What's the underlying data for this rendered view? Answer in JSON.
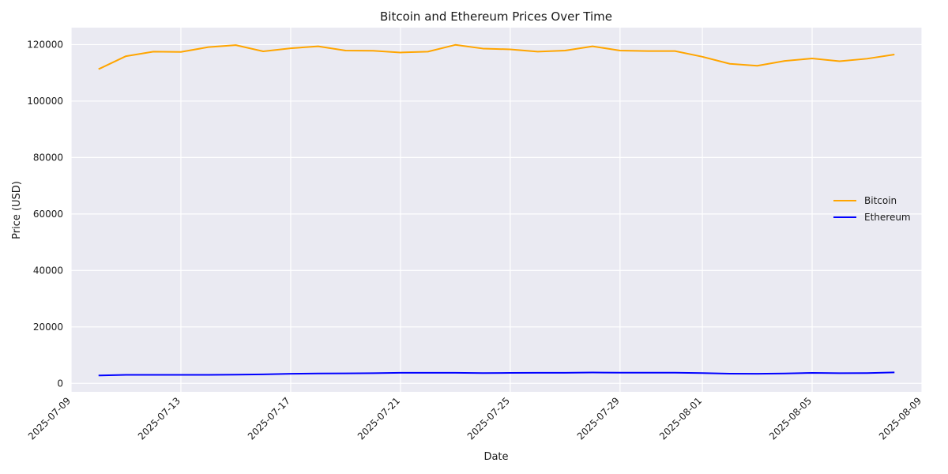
{
  "chart_data": {
    "type": "line",
    "title": "Bitcoin and Ethereum Prices Over Time",
    "xlabel": "Date",
    "ylabel": "Price (USD)",
    "x": [
      "2025-07-10",
      "2025-07-11",
      "2025-07-12",
      "2025-07-13",
      "2025-07-14",
      "2025-07-15",
      "2025-07-16",
      "2025-07-17",
      "2025-07-18",
      "2025-07-19",
      "2025-07-20",
      "2025-07-21",
      "2025-07-22",
      "2025-07-23",
      "2025-07-24",
      "2025-07-25",
      "2025-07-26",
      "2025-07-27",
      "2025-07-28",
      "2025-07-29",
      "2025-07-30",
      "2025-07-31",
      "2025-08-01",
      "2025-08-02",
      "2025-08-03",
      "2025-08-04",
      "2025-08-05",
      "2025-08-06",
      "2025-08-07",
      "2025-08-08"
    ],
    "series": [
      {
        "name": "Bitcoin",
        "color": "#FFA500",
        "values": [
          111300,
          115900,
          117500,
          117400,
          119100,
          119800,
          117600,
          118700,
          119400,
          117900,
          117800,
          117200,
          117500,
          119900,
          118600,
          118300,
          117500,
          117900,
          119400,
          117900,
          117700,
          117700,
          115700,
          113200,
          112500,
          114200,
          115100,
          114100,
          115000,
          116500
        ]
      },
      {
        "name": "Ethereum",
        "color": "#0000FF",
        "values": [
          2800,
          3000,
          3000,
          3000,
          3000,
          3100,
          3200,
          3400,
          3500,
          3550,
          3600,
          3750,
          3750,
          3750,
          3650,
          3700,
          3750,
          3750,
          3850,
          3800,
          3800,
          3800,
          3650,
          3450,
          3400,
          3500,
          3700,
          3600,
          3650,
          3900
        ]
      }
    ],
    "xticks": [
      "2025-07-09",
      "2025-07-13",
      "2025-07-17",
      "2025-07-21",
      "2025-07-25",
      "2025-07-29",
      "2025-08-01",
      "2025-08-05",
      "2025-08-09"
    ],
    "xlim": [
      "2025-07-09",
      "2025-08-09"
    ],
    "yticks": [
      0,
      20000,
      40000,
      60000,
      80000,
      100000,
      120000
    ],
    "ylim": [
      -3000,
      126000
    ],
    "grid": true,
    "legend_position": "center-right",
    "background_color": "#EAEAF2"
  }
}
